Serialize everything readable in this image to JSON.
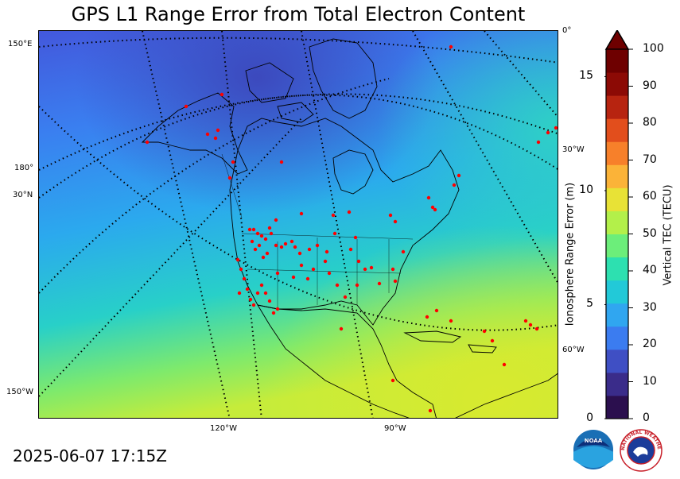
{
  "title": "GPS L1 Range Error from Total Electron Content",
  "timestamp": "2025-06-07 17:15Z",
  "map": {
    "grid_labels": {
      "lon_150e": "150°E",
      "lon_180": "180°",
      "lat_30n": "30°N",
      "lon_150w": "150°W",
      "lon_120w": "120°W",
      "lon_90w": "90°W",
      "lon_0": "0°",
      "lon_30w": "30°W",
      "lon_60w": "60°W"
    },
    "station_color": "#ff0000",
    "coastline_color": "#000000"
  },
  "colorbar": {
    "left_label": "Ionosphere Range Error (m)",
    "right_label": "Vertical TEC (TECU)",
    "left_ticks": [
      "0",
      "5",
      "10",
      "15"
    ],
    "right_ticks": [
      "0",
      "10",
      "20",
      "30",
      "40",
      "50",
      "60",
      "70",
      "80",
      "90",
      "100"
    ],
    "tec_min": 0,
    "tec_max": 100,
    "range_error_max_m": 16.2,
    "extend": "max",
    "colors": [
      "#2b0f4e",
      "#3a2c8a",
      "#3f4fc4",
      "#3b7cf0",
      "#30a6f0",
      "#22c9d8",
      "#2de0b0",
      "#6cee7a",
      "#b3f04a",
      "#e8e236",
      "#fbb338",
      "#f7802a",
      "#e24e1c",
      "#b72410",
      "#8c0a05",
      "#6e0000"
    ]
  },
  "logos": {
    "noaa": "NOAA",
    "nws": "NATIONAL WEATHER SERVICE"
  }
}
